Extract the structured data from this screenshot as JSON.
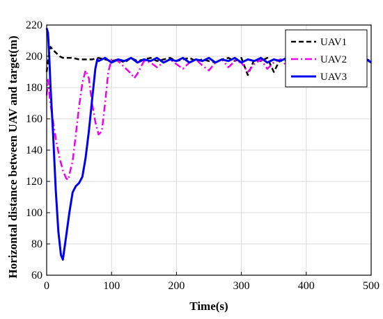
{
  "chart_data": {
    "type": "line",
    "title": "",
    "xlabel": "Time(s)",
    "ylabel": "Horizontal distance between UAV and target(m)",
    "xlim": [
      0,
      500
    ],
    "ylim": [
      60,
      220
    ],
    "xticks": [
      0,
      100,
      200,
      300,
      400,
      500
    ],
    "yticks": [
      60,
      80,
      100,
      120,
      140,
      160,
      180,
      200,
      220
    ],
    "xtick_labels": [
      "0",
      "100",
      "200",
      "300",
      "400",
      "500"
    ],
    "ytick_labels": [
      "60",
      "80",
      "100",
      "120",
      "140",
      "160",
      "180",
      "200",
      "220"
    ],
    "grid": true,
    "legend_position": "top-right",
    "series": [
      {
        "name": "UAV1",
        "color": "#000000",
        "style": "dashed",
        "x": [
          0,
          3,
          6,
          10,
          15,
          20,
          25,
          30,
          40,
          50,
          60,
          70,
          80,
          90,
          100,
          110,
          120,
          130,
          140,
          150,
          160,
          170,
          180,
          190,
          200,
          210,
          220,
          230,
          240,
          250,
          260,
          270,
          280,
          290,
          300,
          310,
          320,
          330,
          340,
          350,
          360,
          370,
          380,
          390,
          400,
          410,
          420,
          430,
          440,
          450,
          460,
          470,
          480,
          490,
          500
        ],
        "y": [
          190,
          200,
          206,
          204,
          202,
          200,
          199,
          199,
          199,
          198,
          198,
          198,
          199,
          198,
          197,
          198,
          196,
          199,
          197,
          198,
          199,
          197,
          198,
          199,
          197,
          198,
          199,
          197,
          198,
          197,
          196,
          198,
          199,
          197,
          199,
          188,
          198,
          197,
          199,
          190,
          198,
          197,
          199,
          198,
          197,
          198,
          199,
          197,
          198,
          199,
          197,
          198,
          199,
          197,
          198
        ]
      },
      {
        "name": "UAV2",
        "color": "#ee00ee",
        "style": "dashdot",
        "x": [
          0,
          2,
          5,
          10,
          15,
          20,
          25,
          30,
          33,
          40,
          45,
          50,
          55,
          60,
          65,
          70,
          75,
          80,
          85,
          90,
          95,
          100,
          110,
          120,
          130,
          135,
          140,
          150,
          160,
          170,
          180,
          190,
          200,
          210,
          220,
          230,
          240,
          250,
          260,
          270,
          280,
          290,
          300,
          310,
          320,
          330,
          340,
          350,
          360,
          370,
          380,
          390,
          400,
          410,
          420,
          430,
          440,
          450,
          460,
          470,
          480,
          490,
          500
        ],
        "y": [
          175,
          185,
          172,
          158,
          145,
          135,
          127,
          122,
          121,
          133,
          150,
          168,
          183,
          191,
          186,
          170,
          158,
          150,
          152,
          170,
          190,
          198,
          197,
          193,
          189,
          186,
          189,
          197,
          196,
          193,
          196,
          198,
          195,
          192,
          196,
          198,
          194,
          191,
          196,
          198,
          193,
          197,
          196,
          190,
          195,
          198,
          192,
          196,
          198,
          194,
          192,
          197,
          196,
          191,
          195,
          198,
          193,
          196,
          192,
          197,
          195,
          198,
          196
        ]
      },
      {
        "name": "UAV3",
        "color": "#0000ee",
        "style": "solid",
        "x": [
          0,
          2,
          4,
          6,
          10,
          14,
          18,
          22,
          25,
          30,
          35,
          40,
          45,
          50,
          55,
          60,
          65,
          70,
          75,
          78,
          80,
          90,
          100,
          110,
          120,
          130,
          140,
          150,
          160,
          170,
          180,
          190,
          200,
          210,
          220,
          230,
          240,
          250,
          260,
          270,
          280,
          290,
          300,
          310,
          320,
          330,
          340,
          350,
          360,
          370,
          380,
          390,
          400,
          410,
          420,
          430,
          440,
          450,
          460,
          470,
          480,
          490,
          500
        ],
        "y": [
          218,
          215,
          200,
          180,
          150,
          115,
          88,
          73,
          70,
          85,
          100,
          113,
          117,
          119,
          123,
          135,
          152,
          172,
          192,
          198,
          197,
          199,
          196,
          198,
          197,
          199,
          196,
          198,
          197,
          199,
          196,
          198,
          197,
          199,
          196,
          198,
          197,
          199,
          196,
          198,
          197,
          199,
          196,
          198,
          197,
          199,
          196,
          198,
          197,
          199,
          196,
          198,
          197,
          199,
          196,
          198,
          197,
          199,
          196,
          198,
          197,
          199,
          196
        ]
      }
    ]
  }
}
